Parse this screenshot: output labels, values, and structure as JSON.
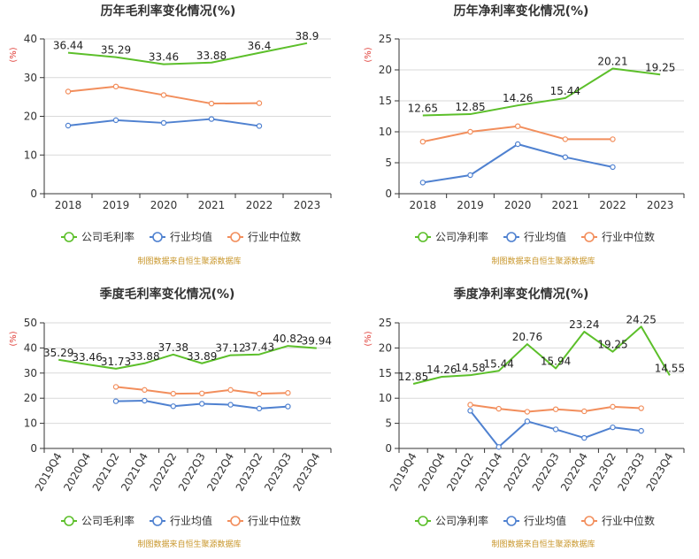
{
  "legend_labels": {
    "industry_avg": "行业均值",
    "industry_median": "行业中位数"
  },
  "source_note": "制图数据来自恒生聚源数据库",
  "y_unit": "(%)",
  "colors": {
    "company": "#5cbf2a",
    "avg": "#4f81d0",
    "median": "#f28e5c",
    "grid": "#d9d9d9",
    "axis": "#333333",
    "title": "#333333"
  },
  "chart_data": [
    {
      "type": "line",
      "title": "历年毛利率变化情况(%)",
      "categories": [
        "2018",
        "2019",
        "2020",
        "2021",
        "2022",
        "2023"
      ],
      "ylim": [
        0,
        40
      ],
      "yticks": [
        0,
        10,
        20,
        30,
        40
      ],
      "rotate_x": false,
      "series": [
        {
          "key": "company",
          "name": "公司毛利率",
          "values": [
            36.44,
            35.29,
            33.46,
            33.88,
            36.4,
            38.9
          ],
          "labels": true,
          "markers": false
        },
        {
          "key": "avg",
          "name": "行业均值",
          "values": [
            17.6,
            19.0,
            18.3,
            19.3,
            17.5,
            null
          ],
          "labels": false,
          "markers": true
        },
        {
          "key": "median",
          "name": "行业中位数",
          "values": [
            26.4,
            27.7,
            25.5,
            23.3,
            23.4,
            null
          ],
          "labels": false,
          "markers": true
        }
      ]
    },
    {
      "type": "line",
      "title": "历年净利率变化情况(%)",
      "categories": [
        "2018",
        "2019",
        "2020",
        "2021",
        "2022",
        "2023"
      ],
      "ylim": [
        0,
        25
      ],
      "yticks": [
        0,
        5,
        10,
        15,
        20,
        25
      ],
      "rotate_x": false,
      "series": [
        {
          "key": "company",
          "name": "公司净利率",
          "values": [
            12.65,
            12.85,
            14.26,
            15.44,
            20.21,
            19.25
          ],
          "labels": true,
          "markers": false
        },
        {
          "key": "avg",
          "name": "行业均值",
          "values": [
            1.8,
            3.0,
            8.0,
            5.9,
            4.3,
            null
          ],
          "labels": false,
          "markers": true
        },
        {
          "key": "median",
          "name": "行业中位数",
          "values": [
            8.4,
            10.0,
            10.9,
            8.8,
            8.8,
            null
          ],
          "labels": false,
          "markers": true
        }
      ]
    },
    {
      "type": "line",
      "title": "季度毛利率变化情况(%)",
      "categories": [
        "2019Q4",
        "2020Q4",
        "2021Q2",
        "2021Q4",
        "2022Q2",
        "2022Q3",
        "2022Q4",
        "2023Q2",
        "2023Q3",
        "2023Q4"
      ],
      "ylim": [
        0,
        50
      ],
      "yticks": [
        0,
        10,
        20,
        30,
        40,
        50
      ],
      "rotate_x": true,
      "series": [
        {
          "key": "company",
          "name": "公司毛利率",
          "values": [
            35.29,
            33.46,
            31.73,
            33.88,
            37.38,
            33.89,
            37.12,
            37.43,
            40.82,
            39.94
          ],
          "labels": true,
          "markers": false
        },
        {
          "key": "avg",
          "name": "行业均值",
          "values": [
            null,
            null,
            18.8,
            19.0,
            16.8,
            17.8,
            17.4,
            15.9,
            16.7,
            null
          ],
          "labels": false,
          "markers": true
        },
        {
          "key": "median",
          "name": "行业中位数",
          "values": [
            null,
            null,
            24.5,
            23.3,
            21.8,
            21.9,
            23.3,
            21.8,
            22.1,
            null
          ],
          "labels": false,
          "markers": true
        }
      ]
    },
    {
      "type": "line",
      "title": "季度净利率变化情况(%)",
      "categories": [
        "2019Q4",
        "2020Q4",
        "2021Q2",
        "2021Q4",
        "2022Q2",
        "2022Q3",
        "2022Q4",
        "2023Q2",
        "2023Q3",
        "2023Q4"
      ],
      "ylim": [
        0,
        25
      ],
      "yticks": [
        0,
        5,
        10,
        15,
        20,
        25
      ],
      "rotate_x": true,
      "series": [
        {
          "key": "company",
          "name": "公司净利率",
          "values": [
            12.85,
            14.26,
            14.58,
            15.44,
            20.76,
            15.94,
            23.24,
            19.25,
            24.25,
            14.55
          ],
          "labels": true,
          "markers": false
        },
        {
          "key": "avg",
          "name": "行业均值",
          "values": [
            null,
            null,
            7.5,
            0.3,
            5.4,
            3.8,
            2.1,
            4.2,
            3.5,
            null
          ],
          "labels": false,
          "markers": true
        },
        {
          "key": "median",
          "name": "行业中位数",
          "values": [
            null,
            null,
            8.7,
            7.9,
            7.3,
            7.8,
            7.4,
            8.3,
            8.0,
            null
          ],
          "labels": false,
          "markers": true
        }
      ]
    }
  ]
}
